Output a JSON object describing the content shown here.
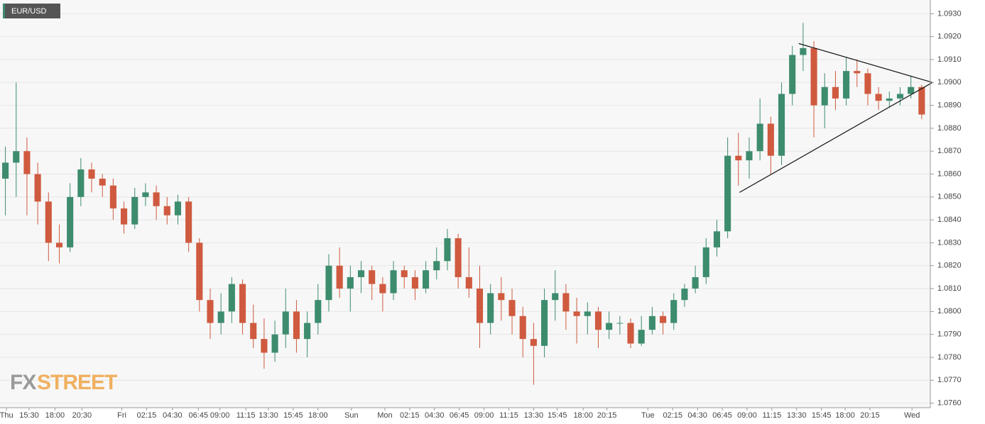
{
  "chart_data": {
    "type": "candlestick",
    "title": "EUR/USD",
    "watermark_left": "FX",
    "watermark_right": "STREET",
    "up_color": "#3d8c6e",
    "down_color": "#cf5a3f",
    "grid": true,
    "xlim": [
      0,
      86.3
    ],
    "ylim": [
      1.0758,
      1.0936
    ],
    "yticks": [
      {
        "value": 1.076,
        "label": "1.0760"
      },
      {
        "value": 1.077,
        "label": "1.0770"
      },
      {
        "value": 1.078,
        "label": "1.0780"
      },
      {
        "value": 1.079,
        "label": "1.0790"
      },
      {
        "value": 1.08,
        "label": "1.0800"
      },
      {
        "value": 1.081,
        "label": "1.0810"
      },
      {
        "value": 1.082,
        "label": "1.0820"
      },
      {
        "value": 1.083,
        "label": "1.0830"
      },
      {
        "value": 1.084,
        "label": "1.0840"
      },
      {
        "value": 1.085,
        "label": "1.0850"
      },
      {
        "value": 1.086,
        "label": "1.0860"
      },
      {
        "value": 1.087,
        "label": "1.0870"
      },
      {
        "value": 1.088,
        "label": "1.0880"
      },
      {
        "value": 1.089,
        "label": "1.0890"
      },
      {
        "value": 1.09,
        "label": "1.0900"
      },
      {
        "value": 1.091,
        "label": "1.0910"
      },
      {
        "value": 1.092,
        "label": "1.0920"
      },
      {
        "value": 1.093,
        "label": "1.0930"
      }
    ],
    "xticks": [
      {
        "value": 0.6,
        "label": "Thu"
      },
      {
        "value": 2.7,
        "label": "15:30"
      },
      {
        "value": 5.1,
        "label": "18:00"
      },
      {
        "value": 7.6,
        "label": "20:30"
      },
      {
        "value": 11.3,
        "label": "Fri"
      },
      {
        "value": 13.6,
        "label": "02:15"
      },
      {
        "value": 16,
        "label": "04:30"
      },
      {
        "value": 18.4,
        "label": "06:45"
      },
      {
        "value": 20.4,
        "label": "09:00"
      },
      {
        "value": 22.8,
        "label": "11:15"
      },
      {
        "value": 24.9,
        "label": "13:30"
      },
      {
        "value": 27.2,
        "label": "15:45"
      },
      {
        "value": 29.5,
        "label": "18:00"
      },
      {
        "value": 32.6,
        "label": "Sun"
      },
      {
        "value": 35.7,
        "label": "Mon"
      },
      {
        "value": 38,
        "label": "02:15"
      },
      {
        "value": 40.3,
        "label": "04:30"
      },
      {
        "value": 42.6,
        "label": "06:45"
      },
      {
        "value": 44.9,
        "label": "09:00"
      },
      {
        "value": 47.2,
        "label": "11:15"
      },
      {
        "value": 49.5,
        "label": "13:30"
      },
      {
        "value": 51.7,
        "label": "15:45"
      },
      {
        "value": 54.1,
        "label": "18:00"
      },
      {
        "value": 56.3,
        "label": "20:15"
      },
      {
        "value": 60.1,
        "label": "Tue"
      },
      {
        "value": 62.4,
        "label": "02:15"
      },
      {
        "value": 64.7,
        "label": "04:30"
      },
      {
        "value": 67,
        "label": "06:45"
      },
      {
        "value": 69.3,
        "label": "09:00"
      },
      {
        "value": 71.6,
        "label": "11:15"
      },
      {
        "value": 73.9,
        "label": "13:30"
      },
      {
        "value": 76.2,
        "label": "15:45"
      },
      {
        "value": 78.4,
        "label": "18:00"
      },
      {
        "value": 80.7,
        "label": "20:15"
      },
      {
        "value": 84.6,
        "label": "Wed"
      }
    ],
    "open": [
      1.0858,
      1.0865,
      1.087,
      1.086,
      1.0848,
      1.083,
      1.0828,
      1.085,
      1.0862,
      1.0858,
      1.0855,
      1.0845,
      1.0838,
      1.085,
      1.0852,
      1.0846,
      1.0842,
      1.0848,
      1.083,
      1.0805,
      1.0795,
      1.08,
      1.0812,
      1.0795,
      1.0788,
      1.0782,
      1.079,
      1.08,
      1.0788,
      1.0795,
      1.0805,
      1.082,
      1.081,
      1.0815,
      1.0818,
      1.0812,
      1.0808,
      1.0818,
      1.0815,
      1.081,
      1.0818,
      1.0822,
      1.0832,
      1.0815,
      1.081,
      1.0795,
      1.0808,
      1.0805,
      1.0798,
      1.0788,
      1.0785,
      1.0805,
      1.0808,
      1.08,
      1.0798,
      1.08,
      1.0792,
      1.0795,
      1.0795,
      1.0786,
      1.0792,
      1.0798,
      1.0795,
      1.0805,
      1.081,
      1.0815,
      1.0828,
      1.0835,
      1.0868,
      1.0866,
      1.087,
      1.0882,
      1.0868,
      1.0895,
      1.0912,
      1.0915,
      1.089,
      1.0898,
      1.0893,
      1.0905,
      1.0904,
      1.0895,
      1.0892,
      1.0893,
      1.0895,
      1.0898
    ],
    "high": [
      1.0872,
      1.09,
      1.0876,
      1.0865,
      1.0852,
      1.0838,
      1.0856,
      1.0867,
      1.0865,
      1.086,
      1.0858,
      1.0848,
      1.0854,
      1.0856,
      1.0855,
      1.085,
      1.0851,
      1.085,
      1.0832,
      1.081,
      1.0808,
      1.0815,
      1.0814,
      1.0803,
      1.0797,
      1.0796,
      1.081,
      1.0805,
      1.08,
      1.0812,
      1.0825,
      1.0828,
      1.082,
      1.0822,
      1.082,
      1.0815,
      1.0822,
      1.082,
      1.0818,
      1.0822,
      1.0828,
      1.0836,
      1.0834,
      1.0828,
      1.082,
      1.0812,
      1.0815,
      1.081,
      1.0802,
      1.0795,
      1.081,
      1.0818,
      1.0812,
      1.0806,
      1.0804,
      1.0802,
      1.08,
      1.0798,
      1.0797,
      1.0798,
      1.0802,
      1.08,
      1.0808,
      1.0812,
      1.082,
      1.0832,
      1.084,
      1.0876,
      1.0878,
      1.0876,
      1.0893,
      1.0885,
      1.09,
      1.0916,
      1.0926,
      1.0918,
      1.0904,
      1.0905,
      1.0911,
      1.091,
      1.0906,
      1.0898,
      1.0896,
      1.0898,
      1.0903,
      1.0899
    ],
    "low": [
      1.0842,
      1.085,
      1.0842,
      1.0838,
      1.0822,
      1.0821,
      1.0826,
      1.0846,
      1.0852,
      1.085,
      1.084,
      1.0834,
      1.0836,
      1.0846,
      1.084,
      1.0838,
      1.0838,
      1.0826,
      1.08,
      1.0788,
      1.079,
      1.0795,
      1.079,
      1.0784,
      1.0775,
      1.0778,
      1.0784,
      1.0782,
      1.078,
      1.079,
      1.08,
      1.0806,
      1.08,
      1.0808,
      1.0805,
      1.08,
      1.0805,
      1.081,
      1.0805,
      1.0808,
      1.0814,
      1.0818,
      1.081,
      1.0806,
      1.0784,
      1.079,
      1.0796,
      1.079,
      1.078,
      1.0768,
      1.078,
      1.0796,
      1.0792,
      1.0786,
      1.079,
      1.0784,
      1.0788,
      1.079,
      1.0784,
      1.0785,
      1.079,
      1.079,
      1.0792,
      1.0802,
      1.0808,
      1.0812,
      1.0824,
      1.0832,
      1.0855,
      1.0858,
      1.0866,
      1.086,
      1.0864,
      1.089,
      1.0905,
      1.0876,
      1.088,
      1.0888,
      1.089,
      1.0898,
      1.089,
      1.0888,
      1.0889,
      1.089,
      1.0893,
      1.0884
    ],
    "close": [
      1.0865,
      1.087,
      1.086,
      1.0848,
      1.083,
      1.0828,
      1.085,
      1.0862,
      1.0858,
      1.0855,
      1.0845,
      1.0838,
      1.085,
      1.0852,
      1.0846,
      1.0842,
      1.0848,
      1.083,
      1.0805,
      1.0795,
      1.08,
      1.0812,
      1.0795,
      1.0788,
      1.0782,
      1.079,
      1.08,
      1.0788,
      1.0795,
      1.0805,
      1.082,
      1.081,
      1.0815,
      1.0818,
      1.0812,
      1.0808,
      1.0818,
      1.0815,
      1.081,
      1.0818,
      1.0822,
      1.0832,
      1.0815,
      1.081,
      1.0795,
      1.0808,
      1.0805,
      1.0798,
      1.0788,
      1.0785,
      1.0805,
      1.0808,
      1.08,
      1.0798,
      1.08,
      1.0792,
      1.0795,
      1.0795,
      1.0786,
      1.0792,
      1.0798,
      1.0795,
      1.0805,
      1.081,
      1.0815,
      1.0828,
      1.0835,
      1.0868,
      1.0866,
      1.087,
      1.0882,
      1.0868,
      1.0895,
      1.0912,
      1.0915,
      1.089,
      1.0898,
      1.0893,
      1.0905,
      1.0904,
      1.0895,
      1.0892,
      1.0893,
      1.0895,
      1.0898,
      1.0886
    ],
    "trendlines": [
      {
        "x": [
          74.1,
          86.5
        ],
        "y": [
          1.0917,
          1.09
        ]
      },
      {
        "x": [
          68.6,
          86.5
        ],
        "y": [
          1.0852,
          1.09
        ]
      }
    ]
  }
}
